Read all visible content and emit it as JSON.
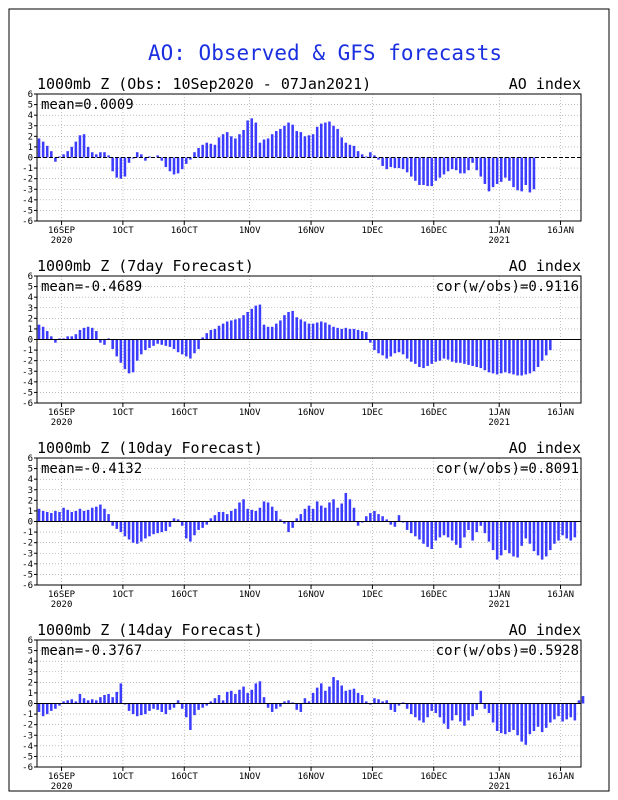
{
  "colors": {
    "bar": "#3c3cff",
    "title": "#1a2fe0",
    "grid": "#9a9a9a",
    "axis": "#000000",
    "background": "#ffffff"
  },
  "page_title": "AO: Observed & GFS forecasts",
  "chart_data": [
    {
      "type": "bar",
      "title": "1000mb Z (Obs: 10Sep2020 - 07Jan2021)",
      "right_title": "AO index",
      "mean_label": "mean=0.0009",
      "cor_label": "",
      "ylim": [
        -6,
        6
      ],
      "yticks": [
        6,
        5,
        4,
        3,
        2,
        1,
        0,
        -1,
        -2,
        -3,
        -4,
        -5,
        -6
      ],
      "xticks": [
        {
          "label": "16SEP",
          "sub": "2020",
          "day": 6
        },
        {
          "label": "1OCT",
          "sub": "",
          "day": 21
        },
        {
          "label": "16OCT",
          "sub": "",
          "day": 36
        },
        {
          "label": "1NOV",
          "sub": "",
          "day": 52
        },
        {
          "label": "16NOV",
          "sub": "",
          "day": 67
        },
        {
          "label": "1DEC",
          "sub": "",
          "day": 82
        },
        {
          "label": "16DEC",
          "sub": "",
          "day": 97
        },
        {
          "label": "1JAN",
          "sub": "2021",
          "day": 113
        },
        {
          "label": "16JAN",
          "sub": "",
          "day": 128
        }
      ],
      "values": [
        1.8,
        1.5,
        1.1,
        0.6,
        -0.4,
        0.1,
        0.3,
        0.6,
        1.0,
        1.5,
        2.1,
        2.2,
        1.0,
        0.5,
        0.3,
        0.5,
        0.5,
        0.2,
        -1.3,
        -1.9,
        -2.0,
        -1.8,
        -0.5,
        -0.1,
        0.5,
        0.3,
        -0.3,
        0.1,
        0,
        0.2,
        -0.3,
        -0.9,
        -1.3,
        -1.6,
        -1.5,
        -1.1,
        -0.6,
        -0.2,
        0.5,
        0.9,
        1.2,
        1.4,
        1.3,
        1.2,
        1.9,
        2.2,
        2.4,
        2.0,
        1.8,
        2.2,
        2.6,
        3.5,
        3.7,
        3.3,
        1.4,
        1.7,
        1.8,
        2.2,
        2.5,
        2.7,
        3.0,
        3.3,
        3.1,
        2.5,
        2.4,
        2.0,
        2.1,
        2.2,
        2.9,
        3.2,
        3.3,
        3.4,
        3.0,
        2.7,
        1.9,
        1.4,
        1.2,
        1.1,
        0.6,
        0.3,
        0.1,
        0.5,
        0.2,
        -0.2,
        -0.8,
        -1.1,
        -0.9,
        -1.0,
        -1.0,
        -1.1,
        -1.4,
        -1.8,
        -2.2,
        -2.6,
        -2.6,
        -2.7,
        -2.7,
        -2.2,
        -1.9,
        -1.6,
        -1.3,
        -1.1,
        -1.2,
        -1.5,
        -1.5,
        -1.2,
        -0.5,
        -1.2,
        -1.8,
        -2.5,
        -3.2,
        -2.8,
        -2.5,
        -2.3,
        -1.9,
        -2.2,
        -2.8,
        -3.1,
        -3.2,
        -2.6,
        -3.3,
        -3.0
      ]
    },
    {
      "type": "bar",
      "title": "1000mb Z (7day Forecast)",
      "right_title": "AO index",
      "mean_label": "mean=-0.4689",
      "cor_label": "cor(w/obs)=0.9116",
      "ylim": [
        -6,
        6
      ],
      "yticks": [
        6,
        5,
        4,
        3,
        2,
        1,
        0,
        -1,
        -2,
        -3,
        -4,
        -5,
        -6
      ],
      "xticks": [
        {
          "label": "16SEP",
          "sub": "2020",
          "day": 6
        },
        {
          "label": "1OCT",
          "sub": "",
          "day": 21
        },
        {
          "label": "16OCT",
          "sub": "",
          "day": 36
        },
        {
          "label": "1NOV",
          "sub": "",
          "day": 52
        },
        {
          "label": "16NOV",
          "sub": "",
          "day": 67
        },
        {
          "label": "1DEC",
          "sub": "",
          "day": 82
        },
        {
          "label": "16DEC",
          "sub": "",
          "day": 97
        },
        {
          "label": "1JAN",
          "sub": "2021",
          "day": 113
        },
        {
          "label": "16JAN",
          "sub": "",
          "day": 128
        }
      ],
      "values": [
        1.4,
        1.2,
        0.8,
        0.3,
        -0.3,
        0.1,
        0.1,
        0.3,
        0.3,
        0.5,
        0.9,
        1.1,
        1.2,
        1.1,
        0.8,
        -0.3,
        -0.5,
        0.1,
        -0.9,
        -1.6,
        -2.2,
        -2.8,
        -3.2,
        -3.1,
        -2.0,
        -1.4,
        -1.0,
        -0.8,
        -0.6,
        -0.4,
        -0.5,
        -0.6,
        -0.7,
        -0.9,
        -1.2,
        -1.4,
        -1.6,
        -1.8,
        -1.3,
        -0.9,
        0.2,
        0.6,
        0.9,
        1.0,
        1.3,
        1.5,
        1.7,
        1.8,
        1.9,
        2.0,
        2.3,
        2.6,
        2.9,
        3.2,
        3.3,
        1.4,
        1.2,
        1.2,
        1.5,
        1.8,
        2.3,
        2.6,
        2.7,
        2.1,
        1.9,
        1.7,
        1.5,
        1.5,
        1.6,
        1.7,
        1.6,
        1.4,
        1.2,
        1.1,
        1.0,
        1.1,
        1.0,
        1.0,
        0.9,
        0.8,
        0.7,
        -0.3,
        -1.0,
        -1.3,
        -1.5,
        -1.8,
        -1.6,
        -1.3,
        -1.2,
        -1.4,
        -1.8,
        -2.1,
        -2.3,
        -2.6,
        -2.7,
        -2.5,
        -2.3,
        -2.1,
        -2.0,
        -1.8,
        -1.9,
        -2.1,
        -2.2,
        -2.2,
        -2.3,
        -2.4,
        -2.5,
        -2.6,
        -2.7,
        -2.9,
        -3.1,
        -3.2,
        -3.3,
        -3.2,
        -3.1,
        -3.2,
        -3.3,
        -3.4,
        -3.4,
        -3.3,
        -3.2,
        -3.0,
        -2.6,
        -2.0,
        -1.5,
        -1.0
      ]
    },
    {
      "type": "bar",
      "title": "1000mb Z (10day Forecast)",
      "right_title": "AO index",
      "mean_label": "mean=-0.4132",
      "cor_label": "cor(w/obs)=0.8091",
      "ylim": [
        -6,
        6
      ],
      "yticks": [
        6,
        5,
        4,
        3,
        2,
        1,
        0,
        -1,
        -2,
        -3,
        -4,
        -5,
        -6
      ],
      "xticks": [
        {
          "label": "16SEP",
          "sub": "2020",
          "day": 6
        },
        {
          "label": "1OCT",
          "sub": "",
          "day": 21
        },
        {
          "label": "16OCT",
          "sub": "",
          "day": 36
        },
        {
          "label": "1NOV",
          "sub": "",
          "day": 52
        },
        {
          "label": "16NOV",
          "sub": "",
          "day": 67
        },
        {
          "label": "1DEC",
          "sub": "",
          "day": 82
        },
        {
          "label": "16DEC",
          "sub": "",
          "day": 97
        },
        {
          "label": "1JAN",
          "sub": "2021",
          "day": 113
        },
        {
          "label": "16JAN",
          "sub": "",
          "day": 128
        }
      ],
      "values": [
        1.2,
        1.0,
        0.9,
        0.8,
        1.0,
        0.9,
        1.3,
        1.1,
        0.9,
        1.0,
        1.2,
        1.0,
        1.1,
        1.3,
        1.4,
        1.6,
        1.2,
        0.7,
        -0.4,
        -0.7,
        -1.0,
        -1.4,
        -1.7,
        -2.0,
        -2.1,
        -1.9,
        -1.6,
        -1.4,
        -1.2,
        -1.1,
        -1.0,
        -0.9,
        -0.5,
        0.3,
        0.2,
        -0.4,
        -1.6,
        -1.9,
        -1.3,
        -0.8,
        -0.6,
        -0.3,
        0.3,
        0.6,
        0.9,
        0.9,
        0.7,
        1.0,
        1.2,
        1.8,
        2.1,
        1.2,
        1.1,
        1.0,
        1.3,
        1.9,
        1.8,
        1.4,
        1.0,
        0.2,
        -0.2,
        -1.0,
        -0.6,
        0.3,
        0.7,
        1.2,
        1.5,
        1.2,
        1.9,
        1.5,
        1.3,
        1.8,
        2.1,
        1.3,
        1.7,
        2.7,
        2.1,
        1.3,
        -0.4,
        -0.1,
        0.5,
        0.8,
        1.0,
        0.7,
        0.5,
        0.2,
        -0.3,
        -0.5,
        0.6,
        -0.1,
        -0.8,
        -1.1,
        -1.4,
        -1.7,
        -2.1,
        -2.4,
        -2.6,
        -1.8,
        -1.5,
        -1.3,
        -1.5,
        -1.8,
        -2.2,
        -2.5,
        -1.5,
        -0.8,
        -1.8,
        -1.0,
        -0.4,
        -1.1,
        -1.9,
        -2.7,
        -3.6,
        -3.2,
        -2.7,
        -3.0,
        -3.3,
        -3.4,
        -2.3,
        -1.6,
        -2.1,
        -2.8,
        -3.2,
        -3.6,
        -3.3,
        -2.7,
        -2.1,
        -1.8,
        -1.3,
        -1.6,
        -1.8,
        -1.5
      ]
    },
    {
      "type": "bar",
      "title": "1000mb Z (14day Forecast)",
      "right_title": "AO index",
      "mean_label": "mean=-0.3767",
      "cor_label": "cor(w/obs)=0.5928",
      "ylim": [
        -6,
        6
      ],
      "yticks": [
        6,
        5,
        4,
        3,
        2,
        1,
        0,
        -1,
        -2,
        -3,
        -4,
        -5,
        -6
      ],
      "xticks": [
        {
          "label": "16SEP",
          "sub": "2020",
          "day": 6
        },
        {
          "label": "1OCT",
          "sub": "",
          "day": 21
        },
        {
          "label": "16OCT",
          "sub": "",
          "day": 36
        },
        {
          "label": "1NOV",
          "sub": "",
          "day": 52
        },
        {
          "label": "16NOV",
          "sub": "",
          "day": 67
        },
        {
          "label": "1DEC",
          "sub": "",
          "day": 82
        },
        {
          "label": "16DEC",
          "sub": "",
          "day": 97
        },
        {
          "label": "1JAN",
          "sub": "2021",
          "day": 113
        },
        {
          "label": "16JAN",
          "sub": "",
          "day": 128
        }
      ],
      "values": [
        -0.8,
        -1.2,
        -1.0,
        -0.7,
        -0.5,
        -0.2,
        0.2,
        0.3,
        0.4,
        0.2,
        0.9,
        0.5,
        0.3,
        0.4,
        0.3,
        0.6,
        0.8,
        0.9,
        0.6,
        1.1,
        1.9,
        -0.1,
        -0.7,
        -1.0,
        -1.2,
        -1.1,
        -1.0,
        -0.7,
        -0.5,
        -0.6,
        -0.8,
        -1.0,
        -0.6,
        -0.4,
        0.3,
        -0.5,
        -1.3,
        -2.5,
        -1.1,
        -0.6,
        -0.4,
        -0.2,
        0.2,
        0.5,
        0.8,
        0.3,
        1.1,
        1.2,
        0.9,
        1.3,
        1.6,
        1.0,
        1.3,
        1.9,
        2.1,
        0.6,
        -0.4,
        -0.8,
        -0.5,
        -0.3,
        0.2,
        0.3,
        0.1,
        -0.6,
        -0.8,
        0.5,
        0.2,
        1.0,
        1.5,
        1.9,
        1.2,
        1.6,
        2.5,
        2.2,
        1.7,
        1.2,
        1.3,
        1.4,
        1.0,
        0.8,
        0.2,
        -0.1,
        0.5,
        0.4,
        0.2,
        0.3,
        -0.6,
        -0.8,
        -0.2,
        0.1,
        -0.5,
        -1.0,
        -1.3,
        -1.6,
        -1.8,
        -1.3,
        -0.7,
        -0.9,
        -1.3,
        -1.9,
        -2.4,
        -1.6,
        -1.1,
        -1.7,
        -2.1,
        -1.6,
        -1.2,
        -0.6,
        1.2,
        -0.5,
        -0.9,
        -1.8,
        -2.6,
        -2.8,
        -2.9,
        -2.7,
        -2.5,
        -3.0,
        -3.6,
        -3.9,
        -2.9,
        -2.6,
        -2.2,
        -2.7,
        -2.3,
        -1.8,
        -1.5,
        -1.2,
        -1.7,
        -1.5,
        -1.3,
        -1.6,
        0.3,
        0.7
      ]
    }
  ]
}
